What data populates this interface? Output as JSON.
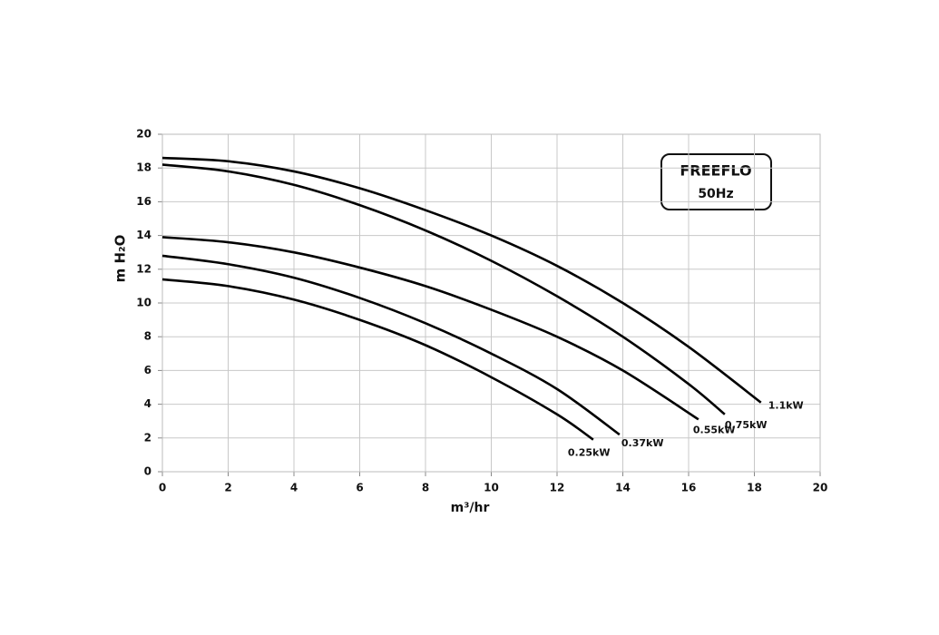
{
  "chart_data": {
    "type": "line",
    "x_label": "m³/hr",
    "y_label": "m H₂O",
    "box_text": {
      "title": "FREEFLO",
      "subtitle": "50Hz"
    },
    "xlim": [
      0,
      20
    ],
    "ylim": [
      0,
      20
    ],
    "xticks": [
      0,
      2,
      4,
      6,
      8,
      10,
      12,
      14,
      16,
      18,
      20
    ],
    "yticks": [
      0,
      2,
      4,
      6,
      8,
      10,
      12,
      14,
      16,
      18,
      20
    ],
    "grid": true,
    "series": [
      {
        "name": "1.1kW",
        "color": "#000000",
        "x": [
          0,
          2,
          4,
          6,
          8,
          10,
          12,
          14,
          16,
          18.2
        ],
        "values": [
          18.6,
          18.4,
          17.8,
          16.8,
          15.5,
          14.0,
          12.2,
          10.0,
          7.4,
          4.1
        ]
      },
      {
        "name": "0.75kW",
        "color": "#000000",
        "x": [
          0,
          2,
          4,
          6,
          8,
          10,
          12,
          14,
          16,
          17.1
        ],
        "values": [
          18.2,
          17.8,
          17.0,
          15.8,
          14.3,
          12.5,
          10.4,
          8.0,
          5.2,
          3.4
        ]
      },
      {
        "name": "0.55kW",
        "color": "#000000",
        "x": [
          0,
          2,
          4,
          6,
          8,
          10,
          12,
          14,
          16.3
        ],
        "values": [
          13.9,
          13.6,
          13.0,
          12.1,
          11.0,
          9.6,
          8.0,
          6.0,
          3.1
        ]
      },
      {
        "name": "0.37kW",
        "color": "#000000",
        "x": [
          0,
          2,
          4,
          6,
          8,
          10,
          12,
          13.9
        ],
        "values": [
          12.8,
          12.3,
          11.5,
          10.3,
          8.8,
          7.0,
          4.9,
          2.2
        ]
      },
      {
        "name": "0.25kW",
        "color": "#000000",
        "x": [
          0,
          2,
          4,
          6,
          8,
          10,
          12,
          13.1
        ],
        "values": [
          11.4,
          11.0,
          10.2,
          9.0,
          7.5,
          5.6,
          3.4,
          1.9
        ]
      }
    ]
  }
}
